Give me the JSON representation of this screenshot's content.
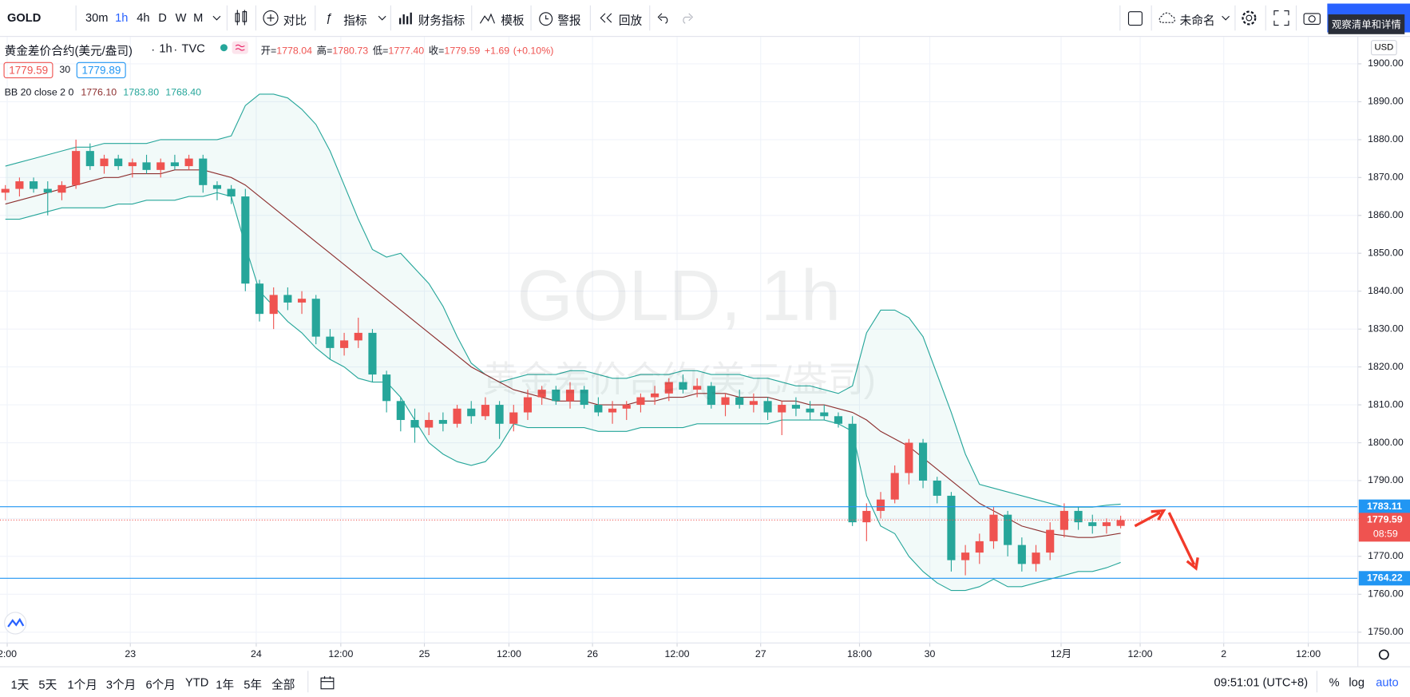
{
  "toolbar": {
    "symbol": "GOLD",
    "intervals": [
      "30m",
      "1h",
      "4h",
      "D",
      "W",
      "M"
    ],
    "compare": "对比",
    "indicators": "指标",
    "financials": "财务指标",
    "templates": "模板",
    "alerts": "警报",
    "replay": "回放",
    "layout_name": "未命名",
    "watchlist": "观察清单和详情"
  },
  "legend": {
    "name": "黄金差价合约(美元/盎司)",
    "interval": "1h",
    "source": "TVC",
    "ohlc": [
      {
        "label": "开=",
        "value": "1778.04"
      },
      {
        "label": "高=",
        "value": "1780.73"
      },
      {
        "label": "低=",
        "value": "1777.40"
      },
      {
        "label": "收=",
        "value": "1779.59"
      }
    ],
    "change": "+1.69",
    "change_pct": "(+0.10%)",
    "bid": 1779.59,
    "spread": 30,
    "ask": 1779.89,
    "indicator": {
      "label": "BB 20 close 2 0",
      "values": [
        "1776.10",
        "1783.80",
        "1768.40"
      ]
    }
  },
  "bottombar": {
    "ranges": [
      "1天",
      "5天",
      "1个月",
      "3个月",
      "6个月",
      "YTD",
      "1年",
      "5年",
      "全部"
    ],
    "clock": "09:51:01 (UTC+8)",
    "percent": "%",
    "log": "log",
    "auto": "auto"
  },
  "chart_data": {
    "type": "candlestick",
    "currency": "USD",
    "watermark": [
      "GOLD, 1h",
      "黄金差价合约(美元/盎司)"
    ],
    "up_color": "#ef5350",
    "down_color": "#26a69a",
    "band_color": "#26a69a",
    "basis_color": "#8d2f2f",
    "line_color": "#2196f3",
    "open": [
      1866,
      1867,
      1869,
      1867,
      1866,
      1868,
      1877,
      1873,
      1875,
      1873,
      1874,
      1872,
      1874,
      1873,
      1875,
      1868,
      1867,
      1865,
      1842,
      1834,
      1839,
      1837,
      1838,
      1828,
      1825,
      1827,
      1829,
      1818,
      1811,
      1806,
      1804,
      1806,
      1805,
      1809,
      1807,
      1810,
      1805,
      1808,
      1812,
      1814,
      1811,
      1814,
      1810,
      1808,
      1809,
      1810,
      1812,
      1813,
      1816,
      1814,
      1815,
      1810,
      1812,
      1810,
      1811,
      1808,
      1810,
      1809,
      1808,
      1807,
      1805,
      1779,
      1782,
      1785,
      1792,
      1800,
      1790,
      1786,
      1769,
      1771,
      1774,
      1781,
      1773,
      1768,
      1771,
      1777,
      1782,
      1779,
      1778,
      1778.04
    ],
    "high": [
      1868,
      1870,
      1870,
      1869,
      1869,
      1880,
      1879,
      1876,
      1876,
      1875,
      1876,
      1875,
      1876,
      1876,
      1876,
      1869,
      1868,
      1867,
      1843,
      1841,
      1841,
      1840,
      1839,
      1830,
      1829,
      1833,
      1830,
      1819,
      1812,
      1809,
      1808,
      1808,
      1810,
      1811,
      1812,
      1811,
      1810,
      1814,
      1815,
      1815,
      1816,
      1815,
      1812,
      1811,
      1811,
      1813,
      1815,
      1817,
      1818,
      1817,
      1816,
      1813,
      1814,
      1813,
      1812,
      1811,
      1812,
      1811,
      1810,
      1808,
      1807,
      1784,
      1787,
      1794,
      1801,
      1801,
      1791,
      1787,
      1773,
      1776,
      1783,
      1782,
      1775,
      1773,
      1779,
      1784,
      1783,
      1781,
      1780,
      1780.73
    ],
    "low": [
      1864,
      1865,
      1866,
      1860,
      1864,
      1867,
      1872,
      1871,
      1872,
      1870,
      1871,
      1870,
      1872,
      1872,
      1866,
      1864,
      1863,
      1840,
      1832,
      1830,
      1835,
      1834,
      1826,
      1822,
      1823,
      1825,
      1816,
      1808,
      1803,
      1800,
      1802,
      1803,
      1804,
      1805,
      1806,
      1801,
      1803,
      1806,
      1810,
      1810,
      1809,
      1809,
      1807,
      1805,
      1806,
      1808,
      1810,
      1811,
      1813,
      1812,
      1809,
      1807,
      1809,
      1808,
      1806,
      1802,
      1807,
      1806,
      1806,
      1804,
      1778,
      1774,
      1780,
      1784,
      1789,
      1788,
      1784,
      1766,
      1765,
      1768,
      1772,
      1770,
      1766,
      1766,
      1769,
      1775,
      1777,
      1776,
      1776,
      1777.4
    ],
    "close": [
      1867,
      1869,
      1867,
      1866,
      1868,
      1877,
      1873,
      1875,
      1873,
      1874,
      1872,
      1874,
      1873,
      1875,
      1868,
      1867,
      1865,
      1842,
      1834,
      1839,
      1837,
      1838,
      1828,
      1825,
      1827,
      1829,
      1818,
      1811,
      1806,
      1804,
      1806,
      1805,
      1809,
      1807,
      1810,
      1805,
      1808,
      1812,
      1814,
      1811,
      1814,
      1810,
      1808,
      1809,
      1810,
      1812,
      1813,
      1816,
      1814,
      1815,
      1810,
      1812,
      1810,
      1811,
      1808,
      1810,
      1809,
      1808,
      1807,
      1805,
      1779,
      1782,
      1785,
      1792,
      1800,
      1790,
      1786,
      1769,
      1771,
      1774,
      1781,
      1773,
      1768,
      1771,
      1777,
      1782,
      1779,
      1778,
      1779,
      1779.59
    ],
    "bb_basis": [
      1863,
      1864,
      1865,
      1866,
      1867,
      1868,
      1869,
      1870,
      1870,
      1871,
      1871,
      1871,
      1872,
      1872,
      1872,
      1871,
      1870,
      1868,
      1865,
      1862,
      1859,
      1856,
      1853,
      1850,
      1847,
      1844,
      1841,
      1838,
      1835,
      1832,
      1829,
      1826,
      1823,
      1820,
      1818,
      1816,
      1814,
      1813,
      1812,
      1811,
      1811,
      1811,
      1810,
      1810,
      1810,
      1811,
      1811,
      1812,
      1812,
      1813,
      1813,
      1813,
      1812,
      1812,
      1812,
      1811,
      1811,
      1810,
      1810,
      1809,
      1808,
      1806,
      1803,
      1801,
      1799,
      1796,
      1793,
      1790,
      1787,
      1784,
      1782,
      1780,
      1778,
      1777,
      1776,
      1775.5,
      1775,
      1775,
      1775.5,
      1776.1
    ],
    "bb_upper": [
      1873,
      1874,
      1875,
      1876,
      1877,
      1878,
      1878,
      1879,
      1879,
      1879,
      1879,
      1880,
      1880,
      1880,
      1880,
      1880,
      1881,
      1889,
      1892,
      1892,
      1891,
      1888,
      1884,
      1877,
      1868,
      1859,
      1851,
      1849,
      1850,
      1846,
      1842,
      1836,
      1828,
      1821,
      1818,
      1816,
      1817,
      1818,
      1818,
      1818,
      1819,
      1819,
      1818,
      1817,
      1817,
      1818,
      1818,
      1818,
      1819,
      1819,
      1818,
      1818,
      1818,
      1817,
      1817,
      1816,
      1815,
      1815,
      1814,
      1813,
      1815,
      1829,
      1835,
      1835,
      1833,
      1828,
      1818,
      1808,
      1797,
      1789,
      1788,
      1787,
      1786,
      1785,
      1784,
      1783,
      1783,
      1783,
      1783.5,
      1783.8
    ],
    "bb_lower": [
      1859,
      1859,
      1860,
      1861,
      1862,
      1862,
      1862,
      1862,
      1863,
      1863,
      1864,
      1864,
      1864,
      1865,
      1865,
      1866,
      1865,
      1852,
      1840,
      1836,
      1832,
      1829,
      1825,
      1822,
      1820,
      1817,
      1816,
      1816,
      1812,
      1806,
      1800,
      1797,
      1795,
      1794,
      1795,
      1799,
      1805,
      1804,
      1804,
      1804,
      1804,
      1804,
      1803,
      1803,
      1803,
      1804,
      1804,
      1804,
      1804,
      1805,
      1805,
      1805,
      1805,
      1805,
      1805,
      1806,
      1806,
      1806,
      1806,
      1805,
      1803,
      1786,
      1778,
      1776,
      1770,
      1766,
      1763,
      1761,
      1761,
      1762,
      1764,
      1762,
      1762,
      1763,
      1764,
      1765,
      1766,
      1766,
      1767,
      1768.4
    ],
    "hlines": [
      1783.11,
      1764.22
    ],
    "last_price": 1779.59,
    "countdown": "08:59",
    "xlim": [
      -0.38,
      95.8
    ],
    "xticks": [
      {
        "value": 0.13,
        "label": "2:00"
      },
      {
        "value": 8.85,
        "label": "23"
      },
      {
        "value": 17.77,
        "label": "24"
      },
      {
        "value": 23.76,
        "label": "12:00"
      },
      {
        "value": 29.68,
        "label": "25"
      },
      {
        "value": 35.67,
        "label": "12:00"
      },
      {
        "value": 41.59,
        "label": "26"
      },
      {
        "value": 47.58,
        "label": "12:00"
      },
      {
        "value": 53.5,
        "label": "27"
      },
      {
        "value": 60.5,
        "label": "18:00"
      },
      {
        "value": 65.48,
        "label": "30"
      },
      {
        "value": 74.78,
        "label": "12月"
      },
      {
        "value": 80.38,
        "label": "12:00"
      },
      {
        "value": 86.3,
        "label": "2"
      },
      {
        "value": 92.29,
        "label": "12:00"
      }
    ],
    "ylim": [
      1747.15,
      1907.36
    ],
    "yticks": [
      {
        "value": 1750,
        "label": "1750.00"
      },
      {
        "value": 1760,
        "label": "1760.00"
      },
      {
        "value": 1770,
        "label": "1770.00"
      },
      {
        "value": 1780,
        "label": "1780.00"
      },
      {
        "value": 1790,
        "label": "1790.00"
      },
      {
        "value": 1800,
        "label": "1800.00"
      },
      {
        "value": 1810,
        "label": "1810.00"
      },
      {
        "value": 1820,
        "label": "1820.00"
      },
      {
        "value": 1830,
        "label": "1830.00"
      },
      {
        "value": 1840,
        "label": "1840.00"
      },
      {
        "value": 1850,
        "label": "1850.00"
      },
      {
        "value": 1860,
        "label": "1860.00"
      },
      {
        "value": 1870,
        "label": "1870.00"
      },
      {
        "value": 1880,
        "label": "1880.00"
      },
      {
        "value": 1890,
        "label": "1890.00"
      },
      {
        "value": 1900,
        "label": "1900.00"
      }
    ],
    "grid": true
  }
}
